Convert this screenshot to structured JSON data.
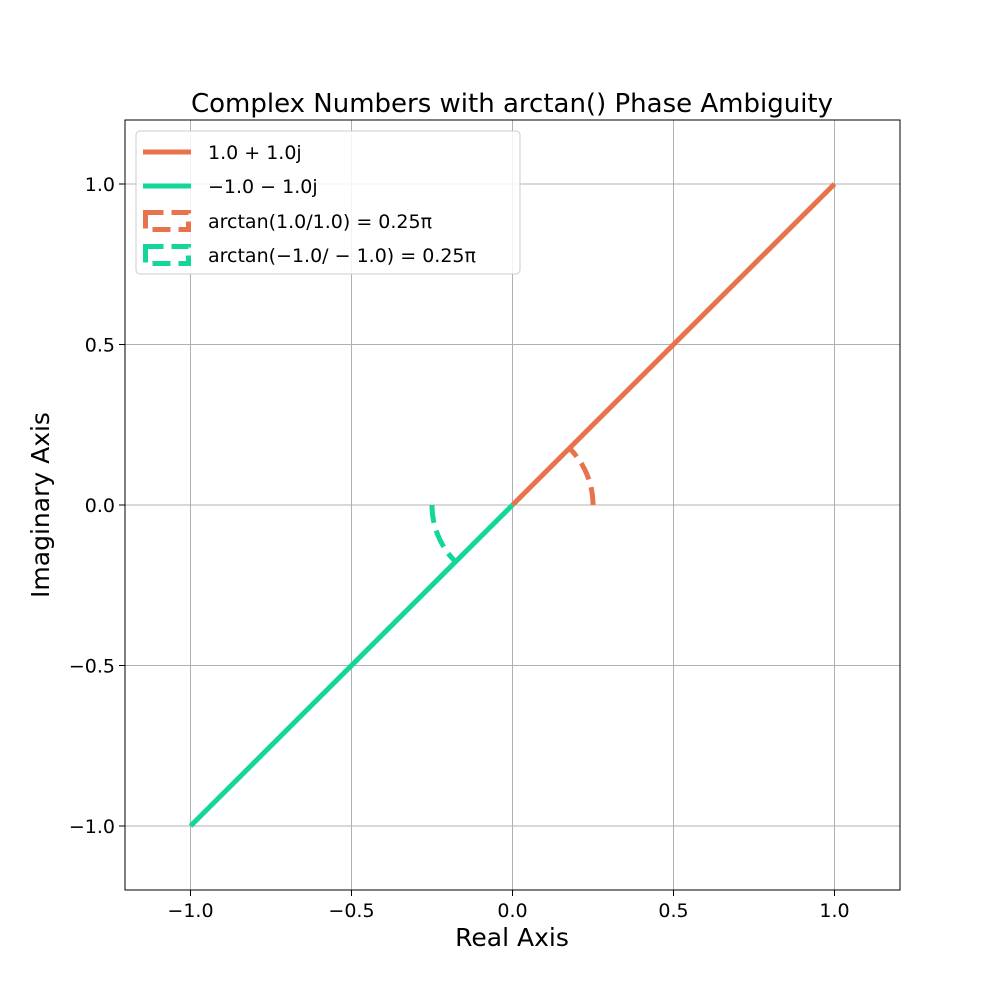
{
  "chart_data": {
    "type": "line",
    "title": "Complex Numbers with arctan() Phase Ambiguity",
    "xlabel": "Real Axis",
    "ylabel": "Imaginary Axis",
    "xlim": [
      -1.2,
      1.2
    ],
    "ylim": [
      -1.2,
      1.2
    ],
    "xticks": [
      -1.0,
      -0.5,
      0.0,
      0.5,
      1.0
    ],
    "yticks": [
      -1.0,
      -0.5,
      0.0,
      0.5,
      1.0
    ],
    "xtick_labels": [
      "−1.0",
      "−0.5",
      "0.0",
      "0.5",
      "1.0"
    ],
    "ytick_labels": [
      "−1.0",
      "−0.5",
      "0.0",
      "0.5",
      "1.0"
    ],
    "grid": true,
    "legend_position": "top-left",
    "series": [
      {
        "name": "1.0 + 1.0j",
        "kind": "vector",
        "style": "solid",
        "color": "#e8724c",
        "points": [
          [
            0.0,
            0.0
          ],
          [
            1.0,
            1.0
          ]
        ]
      },
      {
        "name": "−1.0 − 1.0j",
        "kind": "vector",
        "style": "solid",
        "color": "#12d69a",
        "points": [
          [
            0.0,
            0.0
          ],
          [
            -1.0,
            -1.0
          ]
        ]
      },
      {
        "name": "arctan(1.0/1.0) = 0.25π",
        "kind": "arc",
        "style": "dashed",
        "color": "#e8724c",
        "radius": 0.25,
        "center": [
          0.0,
          0.0
        ],
        "theta_start_deg": 0,
        "theta_end_deg": 45
      },
      {
        "name": "arctan(−1.0/ − 1.0) = 0.25π",
        "kind": "arc",
        "style": "dashed",
        "color": "#12d69a",
        "radius": 0.25,
        "center": [
          0.0,
          0.0
        ],
        "theta_start_deg": 180,
        "theta_end_deg": 225
      }
    ]
  },
  "legend": {
    "items": [
      {
        "label": "1.0 + 1.0j",
        "color": "#e8724c",
        "style": "solid"
      },
      {
        "label": "−1.0 − 1.0j",
        "color": "#12d69a",
        "style": "solid"
      },
      {
        "label": "arctan(1.0/1.0) = 0.25π",
        "color": "#e8724c",
        "style": "dashed"
      },
      {
        "label": "arctan(−1.0/ − 1.0) = 0.25π",
        "color": "#12d69a",
        "style": "dashed"
      }
    ]
  }
}
